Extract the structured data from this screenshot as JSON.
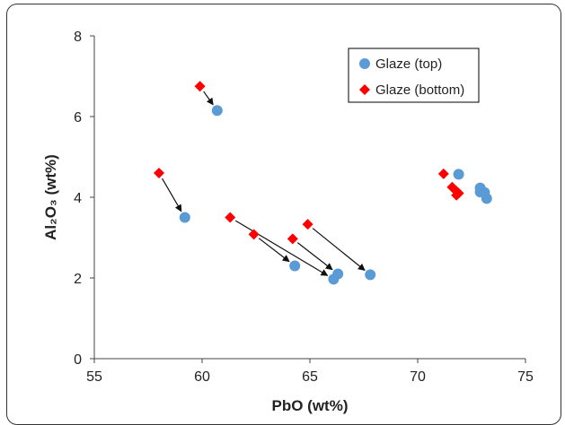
{
  "chart_data": {
    "type": "scatter",
    "title": "",
    "xlabel": "PbO (wt%)",
    "ylabel": "Al₂O₃ (wt%)",
    "xlim": [
      55,
      75
    ],
    "ylim": [
      0,
      8
    ],
    "xticks": [
      55,
      60,
      65,
      70,
      75
    ],
    "yticks": [
      0,
      2,
      4,
      6,
      8
    ],
    "grid": false,
    "legend_position": "top-right",
    "series": [
      {
        "name": "Glaze (top)",
        "marker": "circle",
        "color": "#5b9bd5",
        "points": [
          {
            "x": 60.7,
            "y": 6.15
          },
          {
            "x": 59.2,
            "y": 3.5
          },
          {
            "x": 64.3,
            "y": 2.3
          },
          {
            "x": 66.1,
            "y": 1.97
          },
          {
            "x": 66.3,
            "y": 2.1
          },
          {
            "x": 67.8,
            "y": 2.08
          },
          {
            "x": 71.9,
            "y": 4.57
          },
          {
            "x": 72.9,
            "y": 4.23
          },
          {
            "x": 72.9,
            "y": 4.13
          },
          {
            "x": 73.1,
            "y": 4.12
          },
          {
            "x": 73.2,
            "y": 3.97
          }
        ]
      },
      {
        "name": "Glaze (bottom)",
        "marker": "diamond",
        "color": "#ff0000",
        "points": [
          {
            "x": 59.9,
            "y": 6.75
          },
          {
            "x": 58.0,
            "y": 4.6
          },
          {
            "x": 61.3,
            "y": 3.5
          },
          {
            "x": 62.4,
            "y": 3.08
          },
          {
            "x": 64.2,
            "y": 2.97
          },
          {
            "x": 64.9,
            "y": 3.33
          },
          {
            "x": 71.2,
            "y": 4.58
          },
          {
            "x": 71.6,
            "y": 4.25
          },
          {
            "x": 71.8,
            "y": 4.15
          },
          {
            "x": 71.8,
            "y": 4.05
          },
          {
            "x": 71.9,
            "y": 4.1
          }
        ]
      }
    ],
    "arrows": [
      {
        "from": [
          59.9,
          6.75
        ],
        "to": [
          60.7,
          6.15
        ]
      },
      {
        "from": [
          58.0,
          4.6
        ],
        "to": [
          59.2,
          3.5
        ]
      },
      {
        "from": [
          61.3,
          3.5
        ],
        "to": [
          66.1,
          1.97
        ]
      },
      {
        "from": [
          62.4,
          3.08
        ],
        "to": [
          64.3,
          2.3
        ]
      },
      {
        "from": [
          64.2,
          2.97
        ],
        "to": [
          66.3,
          2.1
        ]
      },
      {
        "from": [
          64.9,
          3.33
        ],
        "to": [
          67.8,
          2.08
        ]
      }
    ]
  }
}
